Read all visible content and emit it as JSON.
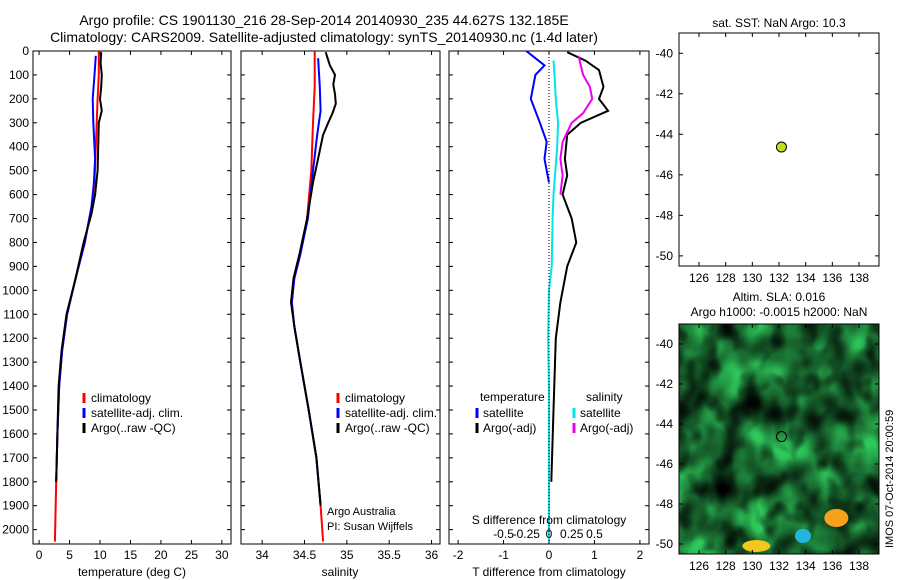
{
  "header": {
    "line1": "Argo profile: CS 1901130_216 28-Sep-2014 20140930_235 44.627S 132.185E",
    "line2": "Climatology: CARS2009. Satellite-adjusted climatology: synTS_20140930.nc (1.4d later)"
  },
  "stamp": "IMOS 07-Oct-2014 20:00:59",
  "credit": {
    "line1": "Argo Australia",
    "line2": "PI: Susan Wijffels"
  },
  "colors": {
    "climatology": "#ff0000",
    "satellite": "#0000ff",
    "argo": "#000000",
    "sat_s": "#00e5ee",
    "argo_s": "#ee00ee",
    "marker": "#c8dc1e"
  },
  "chart_data": [
    {
      "type": "line",
      "panel": "temperature",
      "xlabel": "temperature (deg C)",
      "xlim": [
        -1,
        31.5
      ],
      "xticks": [
        0,
        5,
        10,
        15,
        20,
        25,
        30
      ],
      "ylim": [
        0,
        2060
      ],
      "yticks": [
        0,
        100,
        200,
        300,
        400,
        500,
        600,
        700,
        800,
        900,
        1000,
        1100,
        1200,
        1300,
        1400,
        1500,
        1600,
        1700,
        1800,
        1900,
        2000
      ],
      "legend": [
        "climatology",
        "satellite-adj. clim.",
        "Argo(..raw -QC)"
      ],
      "series": [
        {
          "name": "climatology",
          "color": "#ff0000",
          "points": [
            [
              9.8,
              0
            ],
            [
              9.8,
              100
            ],
            [
              9.6,
              200
            ],
            [
              9.3,
              400
            ],
            [
              9.1,
              550
            ],
            [
              8.6,
              650
            ],
            [
              7.5,
              800
            ],
            [
              6.0,
              950
            ],
            [
              4.6,
              1100
            ],
            [
              3.8,
              1250
            ],
            [
              3.3,
              1400
            ],
            [
              3.0,
              1600
            ],
            [
              2.8,
              1800
            ],
            [
              2.6,
              2050
            ]
          ]
        },
        {
          "name": "satellite-adj. clim.",
          "color": "#0000ff",
          "points": [
            [
              9.3,
              20
            ],
            [
              9.1,
              100
            ],
            [
              8.8,
              200
            ],
            [
              8.9,
              300
            ],
            [
              9.2,
              450
            ],
            [
              9.0,
              550
            ],
            [
              8.6,
              650
            ],
            [
              7.5,
              800
            ],
            [
              6.0,
              950
            ],
            [
              4.6,
              1100
            ],
            [
              3.8,
              1250
            ],
            [
              3.3,
              1400
            ],
            [
              3.0,
              1600
            ],
            [
              2.8,
              1800
            ]
          ]
        },
        {
          "name": "Argo(..raw -QC)",
          "color": "#000000",
          "points": [
            [
              10.2,
              5
            ],
            [
              10.1,
              50
            ],
            [
              10.3,
              100
            ],
            [
              10.2,
              150
            ],
            [
              10.0,
              200
            ],
            [
              10.3,
              250
            ],
            [
              9.8,
              300
            ],
            [
              9.7,
              400
            ],
            [
              9.6,
              500
            ],
            [
              9.2,
              600
            ],
            [
              8.6,
              680
            ],
            [
              7.3,
              800
            ],
            [
              6.0,
              950
            ],
            [
              4.5,
              1100
            ],
            [
              3.7,
              1250
            ],
            [
              3.2,
              1400
            ],
            [
              3.0,
              1600
            ],
            [
              2.8,
              1800
            ]
          ]
        }
      ]
    },
    {
      "type": "line",
      "panel": "salinity",
      "xlabel": "salinity",
      "xlim": [
        33.75,
        36.1
      ],
      "xticks": [
        34,
        34.5,
        35,
        35.5,
        36
      ],
      "ylim": [
        0,
        2060
      ],
      "legend": [
        "climatology",
        "satellite-adj. clim.",
        "Argo(..raw -QC)"
      ],
      "series": [
        {
          "name": "climatology",
          "color": "#ff0000",
          "points": [
            [
              34.62,
              0
            ],
            [
              34.62,
              150
            ],
            [
              34.6,
              300
            ],
            [
              34.58,
              500
            ],
            [
              34.53,
              700
            ],
            [
              34.45,
              850
            ],
            [
              34.38,
              950
            ],
            [
              34.35,
              1050
            ],
            [
              34.38,
              1150
            ],
            [
              34.45,
              1300
            ],
            [
              34.55,
              1500
            ],
            [
              34.64,
              1700
            ],
            [
              34.69,
              1900
            ],
            [
              34.72,
              2050
            ]
          ]
        },
        {
          "name": "satellite-adj. clim.",
          "color": "#0000ff",
          "points": [
            [
              34.66,
              30
            ],
            [
              34.68,
              150
            ],
            [
              34.69,
              250
            ],
            [
              34.65,
              350
            ],
            [
              34.6,
              500
            ],
            [
              34.54,
              700
            ],
            [
              34.45,
              850
            ],
            [
              34.38,
              950
            ],
            [
              34.35,
              1050
            ],
            [
              34.38,
              1150
            ],
            [
              34.45,
              1300
            ],
            [
              34.55,
              1500
            ],
            [
              34.64,
              1700
            ],
            [
              34.69,
              1900
            ]
          ]
        },
        {
          "name": "Argo(..raw -QC)",
          "color": "#000000",
          "points": [
            [
              34.75,
              5
            ],
            [
              34.8,
              60
            ],
            [
              34.86,
              100
            ],
            [
              34.84,
              140
            ],
            [
              34.86,
              180
            ],
            [
              34.87,
              220
            ],
            [
              34.83,
              260
            ],
            [
              34.78,
              300
            ],
            [
              34.72,
              350
            ],
            [
              34.66,
              450
            ],
            [
              34.6,
              550
            ],
            [
              34.53,
              700
            ],
            [
              34.44,
              850
            ],
            [
              34.37,
              950
            ],
            [
              34.34,
              1050
            ],
            [
              34.38,
              1150
            ],
            [
              34.45,
              1300
            ],
            [
              34.55,
              1500
            ],
            [
              34.64,
              1700
            ],
            [
              34.69,
              1900
            ]
          ]
        }
      ]
    },
    {
      "type": "line",
      "panel": "difference",
      "xlabel": "T difference from climatology",
      "xlabel_top": "S difference from climatology",
      "xlim": [
        -2.2,
        2.2
      ],
      "xticks": [
        -2,
        -1,
        0,
        1,
        2
      ],
      "s_ticks": [
        "-0.5",
        "-0.25",
        "0",
        "0.25",
        "0.5"
      ],
      "ylim": [
        0,
        2060
      ],
      "legend_groups": [
        {
          "title": "temperature",
          "entries": [
            "satellite",
            "Argo(-adj)"
          ]
        },
        {
          "title": "salinity",
          "entries": [
            "satellite",
            "Argo(-adj)"
          ]
        }
      ],
      "series": [
        {
          "name": "temperature satellite",
          "color": "#0000ff",
          "points": [
            [
              -0.5,
              0
            ],
            [
              -0.3,
              30
            ],
            [
              -0.1,
              60
            ],
            [
              -0.3,
              100
            ],
            [
              -0.4,
              200
            ],
            [
              -0.2,
              300
            ],
            [
              -0.05,
              380
            ],
            [
              -0.1,
              450
            ],
            [
              -0.05,
              500
            ],
            [
              0.0,
              550
            ]
          ]
        },
        {
          "name": "temperature Argo(-adj)",
          "color": "#000000",
          "points": [
            [
              0.4,
              5
            ],
            [
              0.8,
              40
            ],
            [
              1.1,
              80
            ],
            [
              1.2,
              150
            ],
            [
              1.1,
              200
            ],
            [
              1.3,
              250
            ],
            [
              0.7,
              300
            ],
            [
              0.4,
              350
            ],
            [
              0.35,
              450
            ],
            [
              0.4,
              520
            ],
            [
              0.3,
              600
            ],
            [
              0.5,
              700
            ],
            [
              0.6,
              800
            ],
            [
              0.4,
              900
            ],
            [
              0.25,
              1050
            ],
            [
              0.15,
              1200
            ],
            [
              0.1,
              1500
            ],
            [
              0.05,
              1800
            ]
          ]
        },
        {
          "name": "salinity satellite",
          "color": "#00e5ee",
          "points": [
            [
              0.1,
              40
            ],
            [
              0.12,
              100
            ],
            [
              0.15,
              200
            ],
            [
              0.2,
              300
            ],
            [
              0.18,
              400
            ],
            [
              0.14,
              500
            ],
            [
              0.1,
              600
            ],
            [
              0.08,
              700
            ],
            [
              0.06,
              900
            ],
            [
              0.0,
              1000
            ],
            [
              -0.02,
              1200
            ],
            [
              0.0,
              1400
            ],
            [
              0.0,
              1700
            ],
            [
              0.0,
              2050
            ]
          ]
        },
        {
          "name": "salinity Argo(-adj)",
          "color": "#ee00ee",
          "points": [
            [
              0.65,
              20
            ],
            [
              0.7,
              60
            ],
            [
              0.75,
              100
            ],
            [
              0.9,
              150
            ],
            [
              0.95,
              200
            ],
            [
              0.75,
              260
            ],
            [
              0.5,
              300
            ],
            [
              0.3,
              380
            ],
            [
              0.25,
              450
            ],
            [
              0.3,
              520
            ],
            [
              0.25,
              600
            ]
          ]
        }
      ]
    },
    {
      "type": "scatter",
      "panel": "map_sst",
      "title": "sat. SST: NaN Argo: 10.3",
      "xlim": [
        124.5,
        139.5
      ],
      "ylim": [
        -50.5,
        -39
      ],
      "xticks": [
        126,
        128,
        130,
        132,
        134,
        136,
        138
      ],
      "yticks": [
        -40,
        -42,
        -44,
        -46,
        -48,
        -50
      ],
      "points": [
        {
          "x": 132.185,
          "y": -44.627
        }
      ]
    },
    {
      "type": "heatmap",
      "panel": "map_sla",
      "title_line1": "Altim. SLA: 0.016",
      "title_line2": "Argo h1000: -0.0015 h2000: NaN",
      "xlim": [
        124.5,
        139.5
      ],
      "ylim": [
        -50.5,
        -39
      ],
      "xticks": [
        126,
        128,
        130,
        132,
        134,
        136,
        138
      ],
      "yticks": [
        -40,
        -42,
        -44,
        -46,
        -48,
        -50
      ],
      "points": [
        {
          "x": 132.185,
          "y": -44.627
        }
      ]
    }
  ]
}
